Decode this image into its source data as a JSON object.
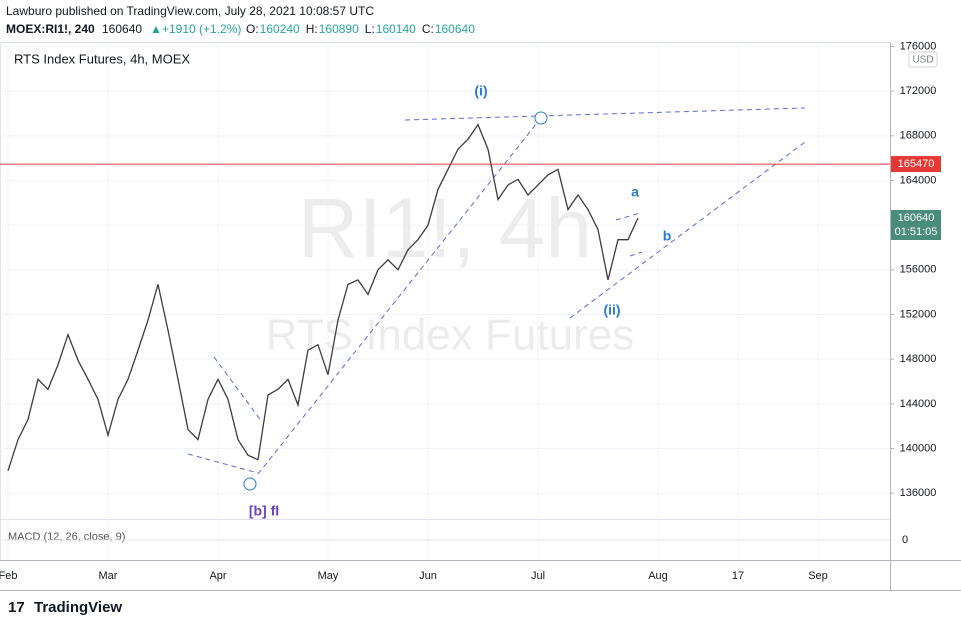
{
  "header": {
    "published": "Lawburo published on TradingView.com, July 28, 2021 10:08:57 UTC",
    "symbol": "MOEX:RI1!, 240",
    "last": 160640,
    "change": "+1910 (+1.2%)",
    "ohlc": [
      {
        "label": "O:",
        "value": 160240
      },
      {
        "label": "H:",
        "value": 160890
      },
      {
        "label": "L:",
        "value": 160140
      },
      {
        "label": "C:",
        "value": 160640
      }
    ]
  },
  "chart_data": {
    "type": "line",
    "title": "RTS Index Futures, 4h, MOEX",
    "watermark": [
      "RI1!, 4h",
      "RTS Index Futures"
    ],
    "currency": "USD",
    "color": "#3c3c3c",
    "categories": [
      "Feb",
      null,
      null,
      null,
      null,
      null,
      null,
      null,
      null,
      null,
      "Mar",
      null,
      null,
      null,
      null,
      null,
      null,
      null,
      null,
      null,
      null,
      "Apr",
      null,
      null,
      null,
      null,
      null,
      null,
      null,
      null,
      null,
      null,
      "May",
      null,
      null,
      null,
      null,
      null,
      null,
      null,
      null,
      null,
      "Jun",
      null,
      null,
      null,
      null,
      null,
      null,
      null,
      null,
      null,
      null,
      "Jul",
      null,
      null,
      null,
      null,
      null,
      null,
      null,
      null,
      null,
      null,
      null,
      "Aug",
      null,
      null,
      null,
      null,
      null,
      null,
      null,
      "17",
      null,
      null,
      null,
      null,
      null,
      null,
      null,
      "Sep",
      null,
      null,
      null,
      null,
      null,
      null,
      null
    ],
    "values": [
      138000,
      140800,
      142600,
      146200,
      145300,
      147500,
      150200,
      147900,
      146200,
      144400,
      141200,
      144400,
      146200,
      148800,
      151500,
      154700,
      150600,
      146200,
      141700,
      140800,
      144400,
      146200,
      144400,
      140800,
      139400,
      139000,
      144800,
      145300,
      146200,
      143900,
      148800,
      149300,
      146600,
      151500,
      154700,
      155100,
      153800,
      156000,
      156900,
      156000,
      157800,
      158700,
      160000,
      163200,
      165000,
      166800,
      167700,
      169000,
      166800,
      162300,
      163600,
      164100,
      162700,
      163600,
      164500,
      165000,
      161400,
      162700,
      161400,
      159600,
      155100,
      158700,
      158700,
      160640,
      null,
      null,
      null,
      null,
      null,
      null,
      null,
      null,
      null,
      null,
      null,
      null,
      null,
      null,
      null,
      null,
      null,
      null,
      null,
      null,
      null,
      null,
      null,
      null,
      null
    ],
    "ylim": [
      133600,
      176400
    ],
    "yticks": [
      136000,
      140000,
      144000,
      148000,
      152000,
      156000,
      160000,
      164000,
      168000,
      172000,
      176000
    ],
    "grid": true,
    "hline": {
      "value": 165470,
      "color": "#e53935"
    },
    "last_price": {
      "value": 160640,
      "countdown": "01:51:05",
      "color": "#4a8c7c"
    },
    "annotations": [
      "(i)",
      "(ii)",
      "a",
      "b",
      "[b] fl"
    ],
    "indicator": {
      "label": "MACD (12, 26, close, 9)",
      "zero": 0
    }
  },
  "footer": "TradingView"
}
